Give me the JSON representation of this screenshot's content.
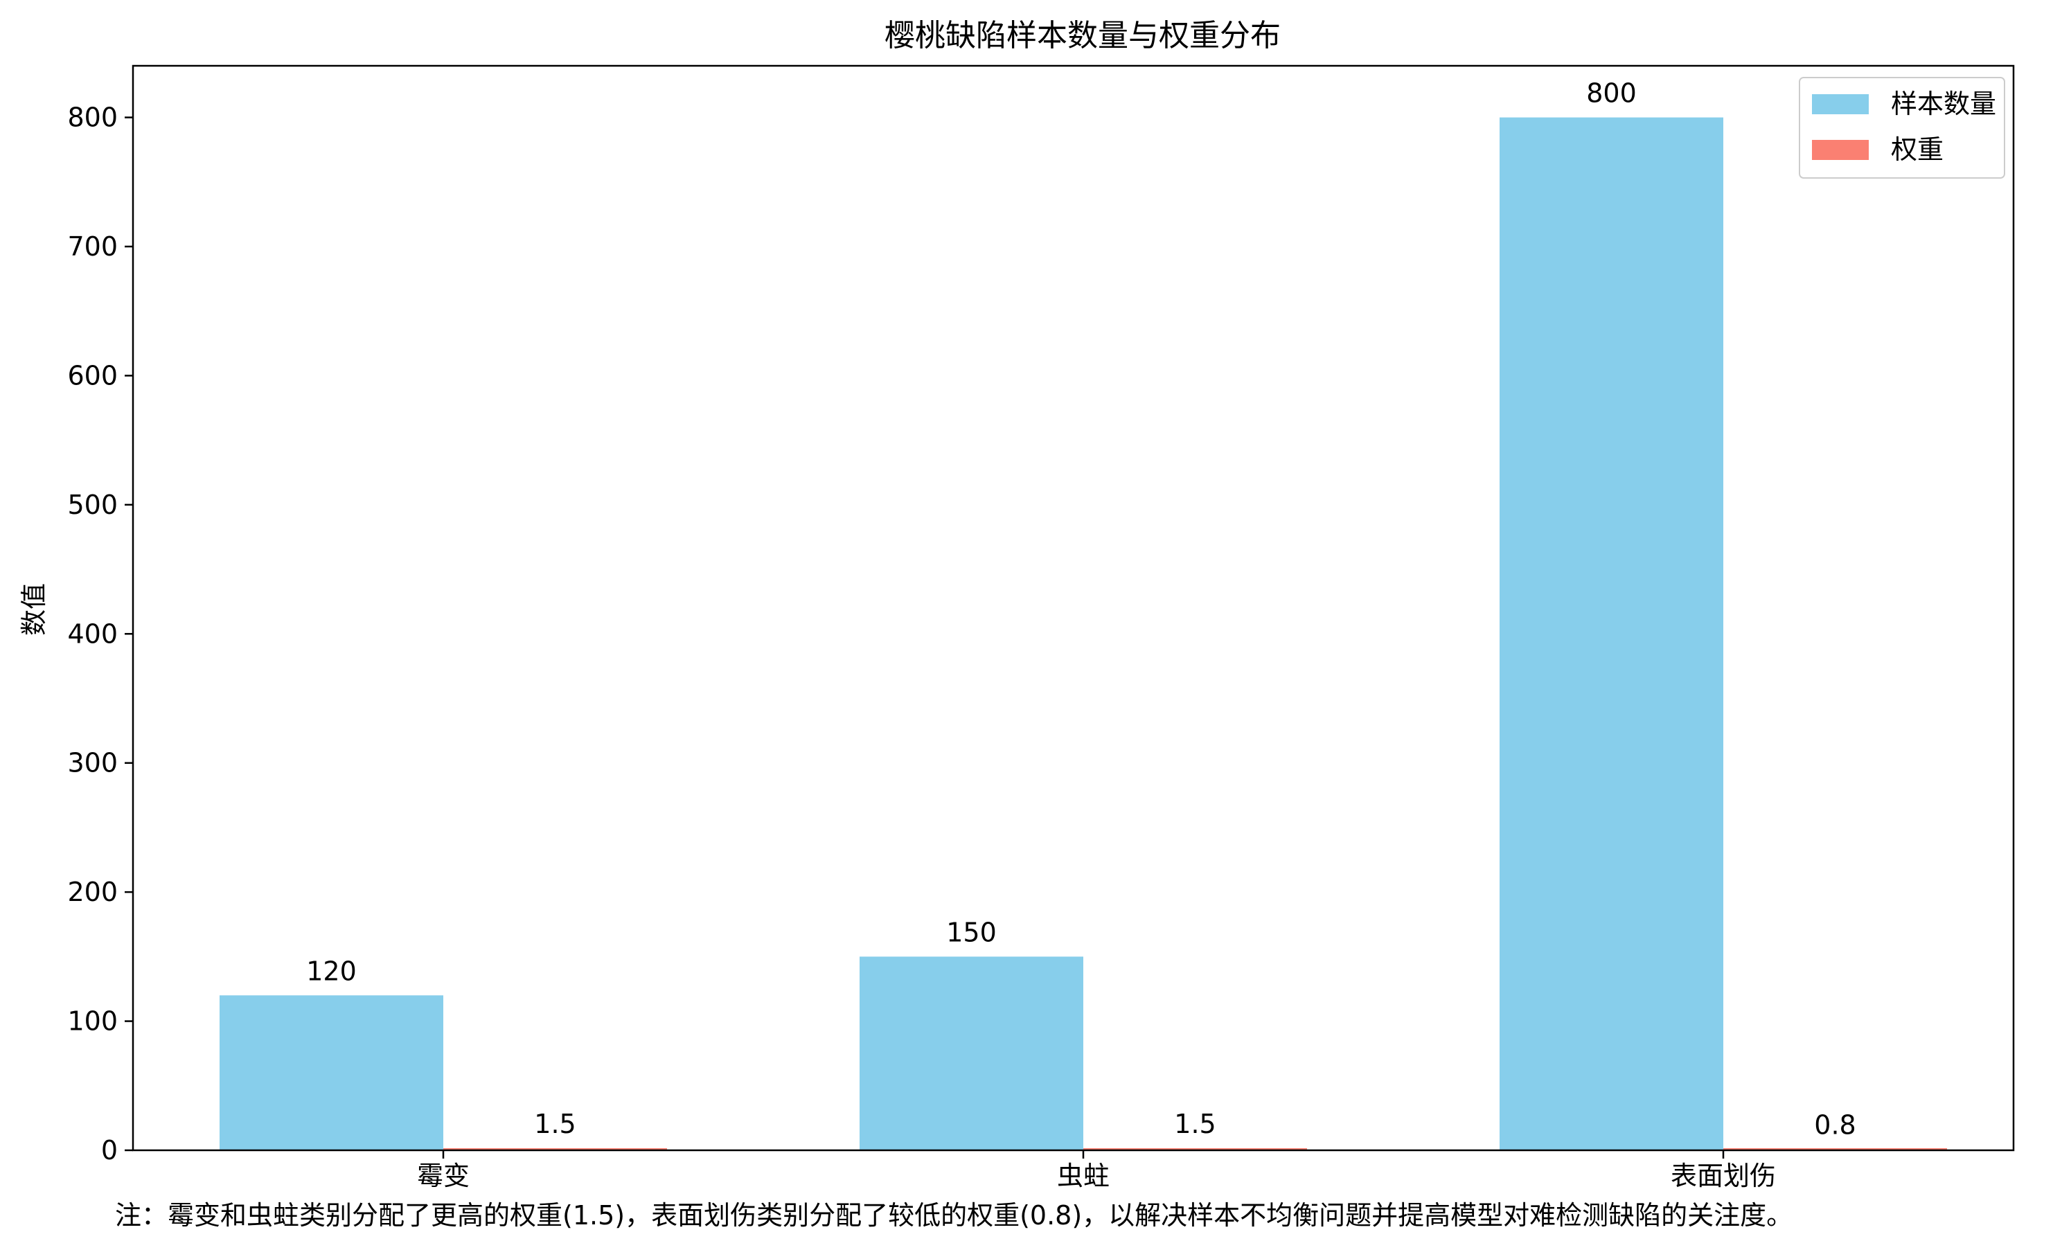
{
  "chart_data": {
    "type": "bar",
    "title": "樱桃缺陷样本数量与权重分布",
    "xlabel": "",
    "ylabel": "数值",
    "categories": [
      "霉变",
      "虫蛀",
      "表面划伤"
    ],
    "series": [
      {
        "name": "样本数量",
        "values": [
          120,
          150,
          800
        ],
        "labels": [
          "120",
          "150",
          "800"
        ],
        "color": "#87CEEB"
      },
      {
        "name": "权重",
        "values": [
          1.5,
          1.5,
          0.8
        ],
        "labels": [
          "1.5",
          "1.5",
          "0.8"
        ],
        "color": "#FA8072"
      }
    ],
    "ylim": [
      0,
      840
    ],
    "yticks": [
      0,
      100,
      200,
      300,
      400,
      500,
      600,
      700,
      800
    ],
    "grid": false,
    "legend": "top-right"
  },
  "note": "注：霉变和虫蛀类别分配了更高的权重(1.5)，表面划伤类别分配了较低的权重(0.8)，以解决样本不均衡问题并提高模型对难检测缺陷的关注度。"
}
